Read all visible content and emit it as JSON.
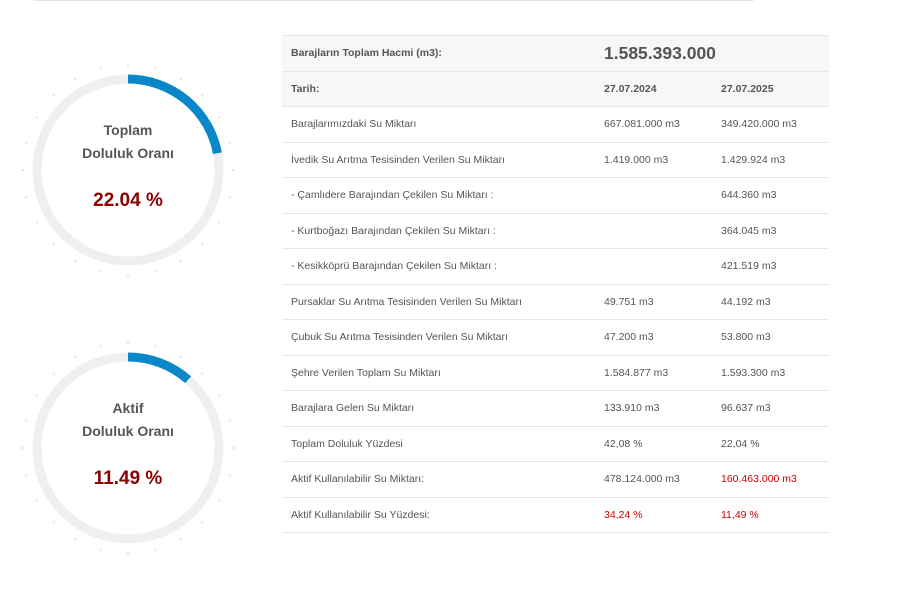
{
  "gauges": [
    {
      "title_line1": "Toplam",
      "title_line2": "Doluluk Oranı",
      "value_text": "22.04 %",
      "fill_fraction": 0.2204,
      "color": "#0a87c8"
    },
    {
      "title_line1": "Aktif",
      "title_line2": "Doluluk Oranı",
      "value_text": "11.49 %",
      "fill_fraction": 0.1149,
      "color": "#0a87c8"
    }
  ],
  "colors": {
    "accent_blue": "#0a87c8",
    "track_gray": "#efefef",
    "value_dark_red": "#8b0000",
    "highlight_red": "#cc0000"
  },
  "table": {
    "total_volume_label": "Barajların Toplam Hacmi (m3):",
    "total_volume_value": "1.585.393.000",
    "date_label": "Tarih:",
    "date_2024": "27.07.2024",
    "date_2025": "27.07.2025",
    "rows": [
      {
        "label": "Barajlarımızdaki Su Miktarı",
        "v2024": "667.081.000 m3",
        "v2025": "349.420.000 m3"
      },
      {
        "label": "İvedik Su Arıtma Tesisinden Verilen Su Miktarı",
        "v2024": "1.419.000 m3",
        "v2025": "1.429.924 m3"
      },
      {
        "label": "- Çamlıdere Barajından Çekilen Su Miktarı :",
        "v2024": "",
        "v2025": "644.360 m3"
      },
      {
        "label": "- Kurtboğazı Barajından Çekilen Su Miktarı :",
        "v2024": "",
        "v2025": "364.045 m3"
      },
      {
        "label": "- Kesikköprü Barajından Çekilen Su Miktarı :",
        "v2024": "",
        "v2025": "421.519 m3"
      },
      {
        "label": "Pursaklar Su Arıtma Tesisinden Verilen Su Miktarı",
        "v2024": "49.751 m3",
        "v2025": "44.192 m3"
      },
      {
        "label": "Çubuk Su Arıtma Tesisinden Verilen Su Miktarı",
        "v2024": "47.200 m3",
        "v2025": "53.800 m3"
      },
      {
        "label": "Şehre Verilen Toplam Su Miktarı",
        "v2024": "1.584.877 m3",
        "v2025": "1.593.300 m3"
      },
      {
        "label": "Barajlara Gelen Su Miktarı",
        "v2024": "133.910 m3",
        "v2025": "96.637 m3"
      },
      {
        "label": "Toplam Doluluk Yüzdesi",
        "v2024": "42,08 %",
        "v2025": "22,04 %"
      },
      {
        "label": "Aktif Kullanılabilir Su Miktarı:",
        "v2024": "478.124.000 m3",
        "v2025": "160.463.000 m3"
      },
      {
        "label": "Aktif Kullanılabilir Su Yüzdesi:",
        "v2024": "34,24 %",
        "v2025": "11,49 %"
      }
    ]
  }
}
